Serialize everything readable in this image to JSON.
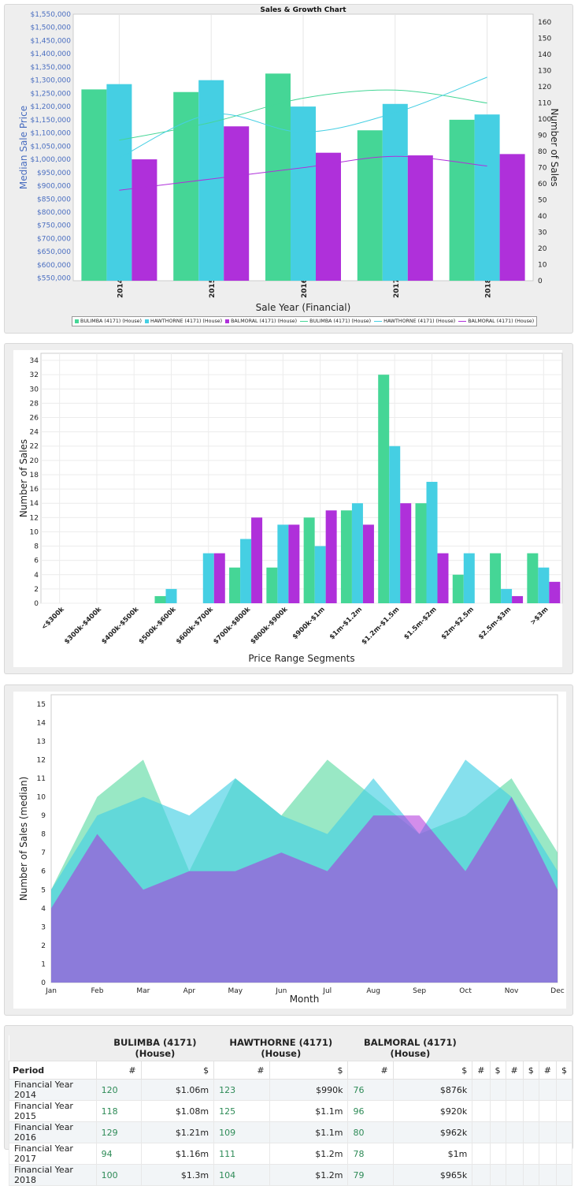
{
  "colors": {
    "bulimba": "#45d696",
    "hawthorne": "#45cfe3",
    "balmoral": "#af30da",
    "axis_blue": "#4a6ec0"
  },
  "chart_data": [
    {
      "type": "bar",
      "title": "Sales & Growth Chart",
      "xlabel": "Sale Year (Financial)",
      "ylabel": "Median Sale Price",
      "y2label": "Number of Sales",
      "ylim": [
        540000,
        1550000
      ],
      "y2lim": [
        0,
        165
      ],
      "categories": [
        "2014",
        "2015",
        "2016",
        "2017",
        "2018"
      ],
      "yticks": [
        "$550,000",
        "$600,000",
        "$650,000",
        "$700,000",
        "$750,000",
        "$800,000",
        "$850,000",
        "$900,000",
        "$950,000",
        "$1,000,000",
        "$1,050,000",
        "$1,100,000",
        "$1,150,000",
        "$1,200,000",
        "$1,250,000",
        "$1,300,000",
        "$1,350,000",
        "$1,400,000",
        "$1,450,000",
        "$1,500,000",
        "$1,550,000"
      ],
      "y2ticks": [
        "0",
        "10",
        "20",
        "30",
        "40",
        "50",
        "60",
        "70",
        "80",
        "90",
        "100",
        "110",
        "120",
        "130",
        "140",
        "150",
        "160"
      ],
      "series": [
        {
          "name": "BULIMBA (4171) (House)",
          "kind": "bar",
          "values": [
            1265000,
            1255000,
            1325000,
            1110000,
            1150000
          ]
        },
        {
          "name": "HAWTHORNE (4171) (House)",
          "kind": "bar",
          "values": [
            1285000,
            1300000,
            1200000,
            1210000,
            1170000
          ]
        },
        {
          "name": "BALMORAL (4171) (House)",
          "kind": "bar",
          "values": [
            1000000,
            1125000,
            1025000,
            1015000,
            1020000
          ]
        },
        {
          "name": "BULIMBA (4171) (House)",
          "kind": "line",
          "values": [
            87,
            98,
            113,
            118,
            110
          ]
        },
        {
          "name": "HAWTHORNE (4171) (House)",
          "kind": "line",
          "values": [
            76,
            103,
            92,
            104,
            126
          ]
        },
        {
          "name": "BALMORAL (4171) (House)",
          "kind": "line",
          "values": [
            56,
            63,
            70,
            77,
            71
          ]
        }
      ]
    },
    {
      "type": "bar",
      "xlabel": "Price Range Segments",
      "ylabel": "Number of Sales",
      "ylim": [
        0,
        35
      ],
      "yticks": [
        "0",
        "2",
        "4",
        "6",
        "8",
        "10",
        "12",
        "14",
        "16",
        "18",
        "20",
        "22",
        "24",
        "26",
        "28",
        "30",
        "32",
        "34"
      ],
      "categories": [
        "<$300k",
        "$300k-$400k",
        "$400k-$500k",
        "$500k-$600k",
        "$600k-$700k",
        "$700k-$800k",
        "$800k-$900k",
        "$900k-$1m",
        "$1m-$1.2m",
        "$1.2m-$1.5m",
        "$1.5m-$2m",
        "$2m-$2.5m",
        "$2.5m-$3m",
        ">$3m"
      ],
      "series": [
        {
          "name": "BULIMBA (4171) (House)",
          "values": [
            0,
            0,
            0,
            1,
            0,
            5,
            5,
            12,
            13,
            32,
            14,
            4,
            7,
            7
          ]
        },
        {
          "name": "HAWTHORNE (4171) (House)",
          "values": [
            0,
            0,
            0,
            2,
            7,
            9,
            11,
            8,
            14,
            22,
            17,
            7,
            2,
            5
          ]
        },
        {
          "name": "BALMORAL (4171) (House)",
          "values": [
            0,
            0,
            0,
            0,
            7,
            12,
            11,
            13,
            11,
            14,
            7,
            0,
            1,
            3
          ]
        }
      ]
    },
    {
      "type": "area",
      "xlabel": "Month",
      "ylabel": "Number of Sales (median)",
      "ylim": [
        0,
        15.5
      ],
      "yticks": [
        "0",
        "1",
        "2",
        "3",
        "4",
        "5",
        "6",
        "7",
        "8",
        "9",
        "10",
        "11",
        "12",
        "13",
        "14",
        "15"
      ],
      "categories": [
        "Jan",
        "Feb",
        "Mar",
        "Apr",
        "May",
        "Jun",
        "Jul",
        "Aug",
        "Sep",
        "Oct",
        "Nov",
        "Dec"
      ],
      "series": [
        {
          "name": "BULIMBA (4171) (House)",
          "values": [
            5,
            10,
            12,
            6,
            11,
            9,
            12,
            10,
            8,
            9,
            11,
            7
          ]
        },
        {
          "name": "HAWTHORNE (4171) (House)",
          "values": [
            5,
            9,
            10,
            9,
            11,
            9,
            8,
            11,
            8,
            12,
            10,
            6
          ]
        },
        {
          "name": "BALMORAL (4171) (House)",
          "values": [
            4,
            8,
            5,
            6,
            6,
            7,
            6,
            9,
            9,
            6,
            10,
            5
          ]
        }
      ]
    }
  ],
  "table": {
    "groups": [
      "BULIMBA (4171) (House)",
      "HAWTHORNE (4171) (House)",
      "BALMORAL (4171) (House)"
    ],
    "period_label": "Period",
    "count_symbol": "#",
    "price_symbol": "$",
    "rows": [
      {
        "period": "Financial Year 2014",
        "b_n": "120",
        "b_p": "$1.06m",
        "h_n": "123",
        "h_p": "$990k",
        "m_n": "76",
        "m_p": "$876k"
      },
      {
        "period": "Financial Year 2015",
        "b_n": "118",
        "b_p": "$1.08m",
        "h_n": "125",
        "h_p": "$1.1m",
        "m_n": "96",
        "m_p": "$920k"
      },
      {
        "period": "Financial Year 2016",
        "b_n": "129",
        "b_p": "$1.21m",
        "h_n": "109",
        "h_p": "$1.1m",
        "m_n": "80",
        "m_p": "$962k"
      },
      {
        "period": "Financial Year 2017",
        "b_n": "94",
        "b_p": "$1.16m",
        "h_n": "111",
        "h_p": "$1.2m",
        "m_n": "78",
        "m_p": "$1m"
      },
      {
        "period": "Financial Year 2018",
        "b_n": "100",
        "b_p": "$1.3m",
        "h_n": "104",
        "h_p": "$1.2m",
        "m_n": "79",
        "m_p": "$965k"
      }
    ]
  }
}
